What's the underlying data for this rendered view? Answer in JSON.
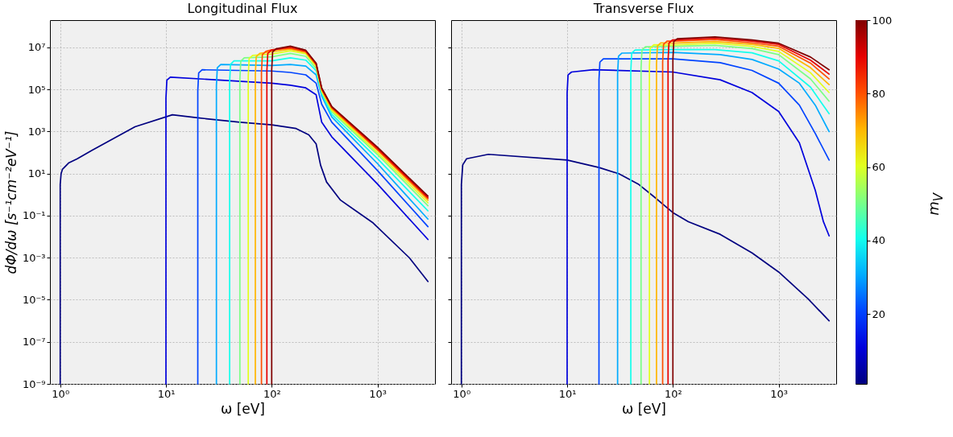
{
  "chart_data": [
    {
      "type": "line",
      "title": "Longitudinal Flux",
      "xlabel": "ω [eV]",
      "ylabel": "dΦ/dω [s⁻¹cm⁻²eV⁻¹]",
      "log": "xy",
      "grid": true,
      "xlim": [
        0.8,
        3500
      ],
      "ylim": [
        1e-09,
        200000000.0
      ],
      "xticks": [
        {
          "value": 1,
          "label": "10⁰"
        },
        {
          "value": 10,
          "label": "10¹"
        },
        {
          "value": 100,
          "label": "10²"
        },
        {
          "value": 1000,
          "label": "10³"
        }
      ],
      "yticks": [
        {
          "value": 1e-09,
          "label": "10⁻⁹"
        },
        {
          "value": 1e-07,
          "label": "10⁻⁷"
        },
        {
          "value": 1e-05,
          "label": "10⁻⁵"
        },
        {
          "value": 0.001,
          "label": "10⁻³"
        },
        {
          "value": 0.1,
          "label": "10⁻¹"
        },
        {
          "value": 10,
          "label": "10¹"
        },
        {
          "value": 1000,
          "label": "10³"
        },
        {
          "value": 100000,
          "label": "10⁵"
        },
        {
          "value": 10000000,
          "label": "10⁷"
        }
      ],
      "series": [
        {
          "color": "#000080",
          "x": [
            1,
            1,
            1.02,
            1.05,
            1.2,
            1.44,
            2,
            5.1,
            11.5,
            20,
            50,
            100,
            170,
            224,
            263,
            290,
            330,
            447,
            910,
            2000,
            3000
          ],
          "values": [
            1e-09,
            3,
            10,
            16,
            32,
            50,
            130,
            1700,
            6300,
            4500,
            2800,
            2100,
            1400,
            700,
            260,
            25,
            4,
            0.55,
            0.045,
            0.001,
            7.4e-05
          ]
        },
        {
          "color": "#0000dc",
          "x": [
            10,
            10,
            10.2,
            11,
            100,
            150,
            210,
            263,
            297,
            370,
            1000,
            3000
          ],
          "values": [
            1e-09,
            39000,
            280000,
            390000,
            200000,
            160000,
            120000,
            56000,
            2800,
            560,
            3.2,
            0.0074
          ]
        },
        {
          "color": "#0044ff",
          "x": [
            20,
            20,
            20.4,
            22,
            100,
            150,
            210,
            263,
            297,
            370,
            1000,
            3000
          ],
          "values": [
            1e-09,
            87000,
            620000,
            870000,
            760000,
            650000,
            500000,
            200000,
            20000,
            2800,
            14,
            0.03
          ]
        },
        {
          "color": "#00abff",
          "x": [
            30,
            30,
            30.6,
            33,
            100,
            150,
            210,
            263,
            297,
            370,
            1000,
            3000
          ],
          "values": [
            1e-09,
            150000,
            1100000,
            1550000,
            1400000,
            1550000,
            1300000,
            500000,
            49000,
            4900,
            30,
            0.069
          ]
        },
        {
          "color": "#13ffec",
          "x": [
            40,
            40,
            40.8,
            44,
            100,
            150,
            210,
            263,
            297,
            370,
            1000,
            3000
          ],
          "values": [
            1e-09,
            230000,
            1600000,
            2300000,
            2300000,
            3200000,
            2500000,
            790000,
            63000,
            6600,
            52,
            0.17
          ]
        },
        {
          "color": "#7aff85",
          "x": [
            50,
            50,
            51,
            55,
            100,
            150,
            210,
            263,
            297,
            370,
            1000,
            3000
          ],
          "values": [
            1e-09,
            320000,
            2200000,
            3200000,
            3600000,
            5200000,
            3800000,
            1000000,
            74000,
            8700,
            81,
            0.3
          ]
        },
        {
          "color": "#e1ff1e",
          "x": [
            60,
            60,
            61.2,
            66,
            100,
            150,
            210,
            263,
            297,
            370,
            1000,
            3000
          ],
          "values": [
            1e-09,
            420000,
            3000000,
            4200000,
            4900000,
            6900000,
            5000000,
            1260000,
            85000,
            10500,
            100,
            0.41
          ]
        },
        {
          "color": "#ffb600",
          "x": [
            70,
            70,
            71.4,
            77,
            100,
            150,
            210,
            263,
            297,
            370,
            1000,
            3000
          ],
          "values": [
            1e-09,
            520000,
            3700000,
            5200000,
            6300000,
            8300000,
            5800000,
            1400000,
            95000,
            12000,
            130,
            0.54
          ]
        },
        {
          "color": "#ff4f00",
          "x": [
            80,
            80,
            81.6,
            88,
            100,
            150,
            210,
            263,
            297,
            370,
            1000,
            3000
          ],
          "values": [
            1e-09,
            650000,
            4600000,
            6500000,
            7800000,
            9300000,
            6300000,
            1600000,
            105000,
            13500,
            140,
            0.65
          ]
        },
        {
          "color": "#e60000",
          "x": [
            90,
            90,
            91.8,
            99,
            150,
            210,
            263,
            297,
            370,
            1000,
            3000
          ],
          "values": [
            1e-09,
            740000,
            5200000,
            7400000,
            10500000,
            6900000,
            1660000,
            110000,
            14500,
            160,
            0.72
          ]
        },
        {
          "color": "#800000",
          "x": [
            100,
            100,
            102,
            110,
            150,
            210,
            263,
            297,
            370,
            1000,
            3000
          ],
          "values": [
            1e-09,
            870000,
            6200000,
            8700000,
            11500000,
            7400000,
            1800000,
            120000,
            15500,
            180,
            0.85
          ]
        }
      ]
    },
    {
      "type": "line",
      "title": "Transverse Flux",
      "xlabel": "ω [eV]",
      "log": "xy",
      "grid": true,
      "tick_labels": "x",
      "xlim": [
        0.8,
        3500
      ],
      "ylim": [
        1e-09,
        200000000.0
      ],
      "xticks": [
        {
          "value": 1,
          "label": "10⁰"
        },
        {
          "value": 10,
          "label": "10¹"
        },
        {
          "value": 100,
          "label": "10²"
        },
        {
          "value": 1000,
          "label": "10³"
        }
      ],
      "yticks": [
        1e-09,
        1e-07,
        1e-05,
        0.001,
        0.1,
        10,
        1000,
        100000,
        10000000
      ],
      "clim": [
        1,
        100
      ],
      "cticks": [
        20,
        40,
        60,
        80,
        100
      ],
      "clabel": "m$_{V}$",
      "series": [
        {
          "color": "#000080",
          "x": [
            1,
            1,
            1.03,
            1.12,
            1.8,
            10,
            20,
            31,
            47,
            66,
            100,
            140,
            280,
            560,
            1000,
            1900,
            3000
          ],
          "values": [
            1e-09,
            3,
            26,
            51,
            83,
            44,
            19.5,
            9.8,
            3.2,
            0.81,
            0.14,
            0.052,
            0.013,
            0.0017,
            0.00021,
            1.1e-05,
            1e-06
          ]
        },
        {
          "color": "#0000dc",
          "x": [
            10,
            10,
            10.2,
            11,
            17.7,
            100,
            280,
            560,
            1000,
            1570,
            2220,
            2650,
            3000
          ],
          "values": [
            1e-09,
            68000,
            490000,
            680000,
            870000,
            680000,
            290000,
            72000,
            9100,
            290,
            1.6,
            0.052,
            0.011
          ]
        },
        {
          "color": "#0044ff",
          "x": [
            20,
            20,
            20.4,
            22,
            100,
            280,
            560,
            1000,
            1570,
            2220,
            3000
          ],
          "values": [
            1e-09,
            290000,
            2000000,
            2900000,
            2900000,
            1900000,
            810000,
            200000,
            18000,
            810,
            44
          ]
        },
        {
          "color": "#00abff",
          "x": [
            30,
            30,
            30.6,
            33,
            100,
            280,
            560,
            1000,
            1570,
            2220,
            3000
          ],
          "values": [
            1e-09,
            540000,
            3800000,
            5400000,
            5800000,
            4600000,
            2700000,
            950000,
            200000,
            18000,
            1000
          ]
        },
        {
          "color": "#13ffec",
          "x": [
            40,
            40,
            40.8,
            44,
            100,
            250,
            560,
            1000,
            2000,
            3000
          ],
          "values": [
            1e-09,
            760000,
            5400000,
            7600000,
            7900000,
            7900000,
            5600000,
            2300000,
            130000,
            7100
          ]
        },
        {
          "color": "#7aff85",
          "x": [
            50,
            50,
            51,
            55,
            100,
            250,
            560,
            1000,
            2000,
            3000
          ],
          "values": [
            1e-09,
            1070000,
            7600000,
            10700000,
            11200000,
            12600000,
            8900000,
            4600000,
            320000,
            28000
          ]
        },
        {
          "color": "#e1ff1e",
          "x": [
            60,
            60,
            61.2,
            66,
            100,
            250,
            560,
            1000,
            2000,
            3000
          ],
          "values": [
            1e-09,
            1350000,
            9500000,
            13500000,
            13000000,
            16000000,
            11200000,
            6500000,
            630000,
            72000
          ]
        },
        {
          "color": "#ffb600",
          "x": [
            70,
            70,
            71.4,
            77,
            100,
            250,
            560,
            1000,
            2000,
            3000
          ],
          "values": [
            1e-09,
            1660000,
            11700000,
            16600000,
            16000000,
            19000000,
            14000000,
            9100000,
            1100000,
            170000
          ]
        },
        {
          "color": "#ff4f00",
          "x": [
            80,
            80,
            81.6,
            88,
            100,
            250,
            560,
            1000,
            2000,
            3000
          ],
          "values": [
            1e-09,
            2000000,
            14000000,
            20000000,
            20000000,
            24000000,
            16600000,
            11500000,
            1800000,
            320000
          ]
        },
        {
          "color": "#e60000",
          "x": [
            90,
            90,
            91.8,
            99,
            250,
            560,
            1000,
            2000,
            3000
          ],
          "values": [
            1e-09,
            2300000,
            16000000,
            23000000,
            27500000,
            20000000,
            14000000,
            2500000,
            540000
          ]
        },
        {
          "color": "#800000",
          "x": [
            100,
            100,
            102,
            110,
            250,
            560,
            1000,
            2000,
            3000
          ],
          "values": [
            1e-09,
            2600000,
            19000000,
            26000000,
            32000000,
            23000000,
            16000000,
            3500000,
            870000
          ]
        }
      ]
    }
  ]
}
